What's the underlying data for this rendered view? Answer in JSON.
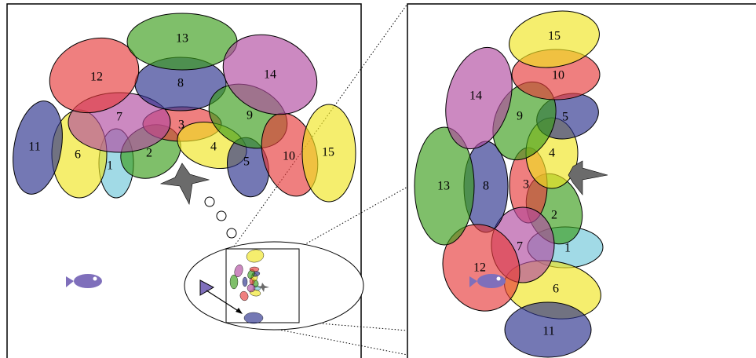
{
  "colors": {
    "red": "#e63a3a",
    "green": "#3a9c1a",
    "purple": "#b04aa0",
    "yellow": "#f0e520",
    "blue": "#2a2f8c",
    "cyan": "#6ec6d8",
    "gray": "#6b6b6b",
    "fish": "#7f6fbb"
  },
  "left_panel": {
    "regions": [
      {
        "label": "1",
        "color": "cyan"
      },
      {
        "label": "2",
        "color": "green"
      },
      {
        "label": "3",
        "color": "red"
      },
      {
        "label": "4",
        "color": "yellow"
      },
      {
        "label": "5",
        "color": "blue"
      },
      {
        "label": "6",
        "color": "yellow"
      },
      {
        "label": "7",
        "color": "purple"
      },
      {
        "label": "8",
        "color": "blue"
      },
      {
        "label": "9",
        "color": "green"
      },
      {
        "label": "10",
        "color": "red"
      },
      {
        "label": "11",
        "color": "blue"
      },
      {
        "label": "12",
        "color": "red"
      },
      {
        "label": "13",
        "color": "green"
      },
      {
        "label": "14",
        "color": "purple"
      },
      {
        "label": "15",
        "color": "yellow"
      }
    ]
  },
  "right_panel": {
    "regions": [
      {
        "label": "1",
        "color": "cyan"
      },
      {
        "label": "2",
        "color": "green"
      },
      {
        "label": "3",
        "color": "red"
      },
      {
        "label": "4",
        "color": "yellow"
      },
      {
        "label": "5",
        "color": "blue"
      },
      {
        "label": "6",
        "color": "yellow"
      },
      {
        "label": "7",
        "color": "purple"
      },
      {
        "label": "8",
        "color": "blue"
      },
      {
        "label": "9",
        "color": "green"
      },
      {
        "label": "10",
        "color": "red"
      },
      {
        "label": "11",
        "color": "blue"
      },
      {
        "label": "12",
        "color": "red"
      },
      {
        "label": "13",
        "color": "green"
      },
      {
        "label": "14",
        "color": "purple"
      },
      {
        "label": "15",
        "color": "yellow"
      }
    ]
  },
  "icons": {
    "bird": "bird-icon",
    "fish": "fish-icon",
    "triangle": "triangle-marker-icon"
  }
}
